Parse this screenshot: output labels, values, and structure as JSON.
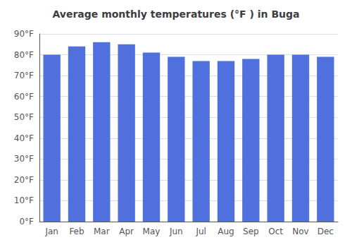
{
  "chart_data": {
    "type": "bar",
    "title": "Average monthly temperatures (°F ) in Buga",
    "categories": [
      "Jan",
      "Feb",
      "Mar",
      "Apr",
      "May",
      "Jun",
      "Jul",
      "Aug",
      "Sep",
      "Oct",
      "Nov",
      "Dec"
    ],
    "values": [
      80,
      84,
      86,
      85,
      81,
      79,
      77,
      77,
      78,
      80,
      80,
      79
    ],
    "ylim": [
      0,
      90
    ],
    "yticks": [
      {
        "value": 0,
        "label": "0°F"
      },
      {
        "value": 10,
        "label": "10°F"
      },
      {
        "value": 20,
        "label": "20°F"
      },
      {
        "value": 30,
        "label": "30°F"
      },
      {
        "value": 40,
        "label": "40°F"
      },
      {
        "value": 50,
        "label": "50°F"
      },
      {
        "value": 60,
        "label": "60°F"
      },
      {
        "value": 70,
        "label": "70°F"
      },
      {
        "value": 80,
        "label": "80°F"
      },
      {
        "value": 90,
        "label": "90°F"
      }
    ],
    "grid": true
  }
}
